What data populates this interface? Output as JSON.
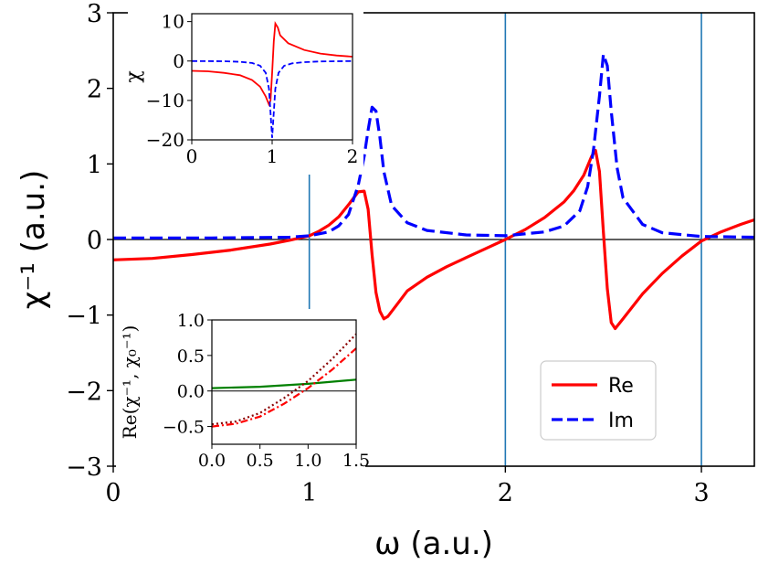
{
  "chart_data": [
    {
      "type": "line",
      "xlabel": "ω (a.u.)",
      "ylabel": "χ⁻¹ (a.u.)",
      "xlim": [
        0,
        3.27
      ],
      "ylim": [
        -3,
        3
      ],
      "xticks": [
        "0",
        "1",
        "2",
        "3"
      ],
      "yticks": [
        "−3",
        "−2",
        "−1",
        "0",
        "1",
        "2",
        "3"
      ],
      "legend": {
        "position": "lower-right",
        "entries": [
          "Re",
          "Im"
        ]
      },
      "colors": {
        "re": "#ff0000",
        "im": "#0000ff",
        "markers": "#1f77b4",
        "zero": "#000000"
      },
      "vertical_lines": [
        {
          "x": 1,
          "y_from": -0.92,
          "y_to": 0.95
        },
        {
          "x": 2,
          "y_from": -3,
          "y_to": 3
        },
        {
          "x": 3,
          "y_from": -3,
          "y_to": 3
        }
      ],
      "series": [
        {
          "name": "Re",
          "style": "solid",
          "x": [
            0,
            0.2,
            0.4,
            0.6,
            0.8,
            0.9,
            1.0,
            1.05,
            1.1,
            1.15,
            1.2,
            1.25,
            1.28,
            1.3,
            1.32,
            1.34,
            1.36,
            1.38,
            1.4,
            1.45,
            1.5,
            1.6,
            1.7,
            1.8,
            1.9,
            2.0,
            2.1,
            2.2,
            2.3,
            2.35,
            2.4,
            2.44,
            2.46,
            2.48,
            2.5,
            2.52,
            2.54,
            2.56,
            2.6,
            2.7,
            2.8,
            2.9,
            3.0,
            3.1,
            3.2,
            3.27
          ],
          "values": [
            -0.27,
            -0.25,
            -0.2,
            -0.14,
            -0.06,
            -0.01,
            0.05,
            0.11,
            0.19,
            0.3,
            0.46,
            0.63,
            0.64,
            0.4,
            -0.2,
            -0.7,
            -0.95,
            -1.05,
            -1.02,
            -0.85,
            -0.68,
            -0.5,
            -0.36,
            -0.24,
            -0.12,
            0.0,
            0.13,
            0.29,
            0.5,
            0.65,
            0.85,
            1.1,
            1.18,
            0.9,
            0.1,
            -0.65,
            -1.1,
            -1.18,
            -1.05,
            -0.72,
            -0.45,
            -0.22,
            -0.02,
            0.1,
            0.2,
            0.26
          ]
        },
        {
          "name": "Im",
          "style": "dashed",
          "x": [
            0,
            0.5,
            0.9,
            1.0,
            1.1,
            1.15,
            1.2,
            1.25,
            1.28,
            1.3,
            1.32,
            1.34,
            1.36,
            1.38,
            1.42,
            1.5,
            1.6,
            1.8,
            2.0,
            2.2,
            2.3,
            2.38,
            2.42,
            2.45,
            2.48,
            2.5,
            2.52,
            2.54,
            2.57,
            2.6,
            2.7,
            2.8,
            3.0,
            3.27
          ],
          "values": [
            0.02,
            0.02,
            0.03,
            0.05,
            0.1,
            0.18,
            0.33,
            0.72,
            1.1,
            1.45,
            1.75,
            1.7,
            1.35,
            0.9,
            0.45,
            0.22,
            0.12,
            0.06,
            0.05,
            0.1,
            0.18,
            0.38,
            0.7,
            1.2,
            1.9,
            2.45,
            2.3,
            1.7,
            0.95,
            0.55,
            0.2,
            0.09,
            0.04,
            0.03
          ]
        }
      ]
    },
    {
      "type": "line",
      "xlabel": "",
      "ylabel": "χ",
      "xlim": [
        0,
        2
      ],
      "ylim": [
        -20,
        12
      ],
      "xticks": [
        "0",
        "1",
        "2"
      ],
      "yticks": [
        "−20",
        "−10",
        "0",
        "10"
      ],
      "series": [
        {
          "style": "solid",
          "x": [
            0,
            0.2,
            0.4,
            0.6,
            0.75,
            0.85,
            0.92,
            0.96,
            0.98,
            1.0,
            1.02,
            1.04,
            1.07,
            1.1,
            1.2,
            1.4,
            1.6,
            1.8,
            2.0
          ],
          "values": [
            -2.5,
            -2.6,
            -3.0,
            -3.6,
            -4.8,
            -6.5,
            -9.0,
            -11.0,
            -10.0,
            -3.0,
            5.0,
            9.5,
            8.5,
            6.5,
            4.5,
            2.8,
            1.9,
            1.4,
            1.1
          ]
        },
        {
          "style": "dashed",
          "x": [
            0,
            0.4,
            0.6,
            0.75,
            0.85,
            0.92,
            0.96,
            0.98,
            1.0,
            1.02,
            1.04,
            1.08,
            1.15,
            1.25,
            1.4,
            1.6,
            2.0
          ],
          "values": [
            0,
            -0.05,
            -0.2,
            -0.5,
            -1.2,
            -3.0,
            -7.0,
            -13.0,
            -19.5,
            -13.0,
            -7.0,
            -3.0,
            -1.2,
            -0.6,
            -0.3,
            -0.1,
            0
          ]
        }
      ]
    },
    {
      "type": "line",
      "xlabel": "",
      "ylabel": "Re(χ⁻¹, χ₀⁻¹)",
      "xlim": [
        0,
        1.5
      ],
      "ylim": [
        -0.75,
        1.0
      ],
      "xticks": [
        "0.0",
        "0.5",
        "1.0",
        "1.5"
      ],
      "yticks": [
        "−0.5",
        "0.0",
        "0.5",
        "1.0"
      ],
      "colors": {
        "green": "#008000",
        "darkred": "#8b0000",
        "red": "#ff0000"
      },
      "series": [
        {
          "style": "solid",
          "color": "green",
          "x": [
            0,
            0.5,
            1.0,
            1.5
          ],
          "values": [
            0.04,
            0.06,
            0.1,
            0.16
          ]
        },
        {
          "style": "dotted",
          "color": "darkred",
          "x": [
            0,
            0.25,
            0.5,
            0.75,
            1.0,
            1.25,
            1.5
          ],
          "values": [
            -0.47,
            -0.43,
            -0.31,
            -0.1,
            0.14,
            0.45,
            0.8
          ]
        },
        {
          "style": "dashdot",
          "color": "red",
          "x": [
            0,
            0.25,
            0.5,
            0.75,
            1.0,
            1.25,
            1.5
          ],
          "values": [
            -0.5,
            -0.46,
            -0.36,
            -0.18,
            0.04,
            0.3,
            0.6
          ]
        }
      ]
    }
  ]
}
